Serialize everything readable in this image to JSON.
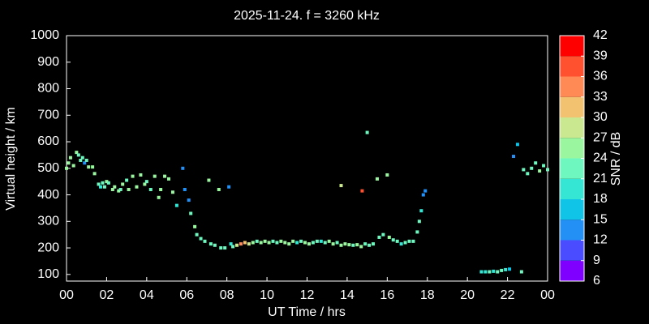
{
  "chart_data": {
    "type": "scatter",
    "title": "2025-11-24. f = 3260 kHz",
    "xlabel": "UT Time / hrs",
    "ylabel": "Virtual height / km",
    "colorbar_label": "SNR / dB",
    "x": [
      0.0,
      0.1,
      0.2,
      0.35,
      0.5,
      0.6,
      0.7,
      0.8,
      0.9,
      1.0,
      1.1,
      1.3,
      1.4,
      1.6,
      1.7,
      1.8,
      1.9,
      2.0,
      2.1,
      2.3,
      2.4,
      2.6,
      2.7,
      2.8,
      3.0,
      3.1,
      3.3,
      3.5,
      3.7,
      3.9,
      4.0,
      4.2,
      4.4,
      4.6,
      4.7,
      4.9,
      5.1,
      5.3,
      5.5,
      5.8,
      5.9,
      6.1,
      6.2,
      6.4,
      6.5,
      6.7,
      6.9,
      7.1,
      7.2,
      7.4,
      7.6,
      7.7,
      7.9,
      8.1,
      8.2,
      8.3,
      8.5,
      8.7,
      8.9,
      9.1,
      9.3,
      9.5,
      9.7,
      9.9,
      10.1,
      10.3,
      10.5,
      10.7,
      10.9,
      11.1,
      11.3,
      11.5,
      11.7,
      11.9,
      12.1,
      12.3,
      12.5,
      12.7,
      12.9,
      13.1,
      13.3,
      13.5,
      13.7,
      13.7,
      13.9,
      14.1,
      14.3,
      14.5,
      14.7,
      14.75,
      14.9,
      15.0,
      15.1,
      15.3,
      15.5,
      15.6,
      15.8,
      16.0,
      16.1,
      16.3,
      16.5,
      16.7,
      16.9,
      17.1,
      17.3,
      17.5,
      17.6,
      17.7,
      17.8,
      17.9,
      20.7,
      20.9,
      21.1,
      21.3,
      21.5,
      21.7,
      21.9,
      22.1,
      22.3,
      22.5,
      22.7,
      22.8,
      23.0,
      23.2,
      23.4,
      23.6,
      23.8,
      24.0
    ],
    "y": [
      500,
      520,
      540,
      510,
      560,
      550,
      530,
      540,
      520,
      530,
      505,
      505,
      480,
      440,
      430,
      445,
      430,
      450,
      445,
      420,
      430,
      415,
      420,
      440,
      455,
      420,
      470,
      430,
      475,
      440,
      450,
      420,
      470,
      390,
      420,
      470,
      460,
      410,
      360,
      500,
      420,
      380,
      330,
      280,
      250,
      235,
      225,
      455,
      215,
      210,
      420,
      200,
      200,
      430,
      215,
      205,
      210,
      215,
      220,
      215,
      220,
      225,
      220,
      225,
      220,
      225,
      220,
      225,
      220,
      215,
      225,
      220,
      225,
      220,
      215,
      220,
      225,
      225,
      220,
      225,
      215,
      220,
      210,
      435,
      215,
      212,
      210,
      212,
      205,
      415,
      215,
      635,
      210,
      215,
      460,
      240,
      250,
      475,
      240,
      230,
      225,
      215,
      220,
      225,
      225,
      260,
      300,
      340,
      400,
      415,
      110,
      110,
      110,
      112,
      110,
      115,
      118,
      120,
      545,
      590,
      110,
      495,
      480,
      500,
      520,
      490,
      510,
      495
    ],
    "snr": [
      24,
      24,
      24,
      24,
      24,
      22,
      22,
      22,
      12,
      22,
      24,
      24,
      24,
      22,
      18,
      22,
      22,
      24,
      22,
      24,
      24,
      24,
      22,
      24,
      22,
      24,
      24,
      24,
      24,
      24,
      22,
      22,
      24,
      24,
      24,
      24,
      24,
      24,
      18,
      12,
      12,
      12,
      21,
      24,
      22,
      22,
      21,
      24,
      22,
      21,
      24,
      22,
      22,
      12,
      18,
      22,
      27,
      33,
      30,
      27,
      24,
      22,
      24,
      24,
      24,
      21,
      22,
      24,
      24,
      24,
      24,
      18,
      22,
      24,
      24,
      22,
      21,
      18,
      22,
      24,
      24,
      22,
      24,
      27,
      24,
      24,
      22,
      24,
      24,
      36,
      21,
      21,
      22,
      21,
      24,
      22,
      22,
      24,
      24,
      22,
      21,
      18,
      22,
      22,
      21,
      21,
      22,
      18,
      12,
      12,
      18,
      18,
      21,
      18,
      21,
      21,
      18,
      15,
      12,
      15,
      21,
      21,
      21,
      21,
      21,
      24,
      21,
      21
    ],
    "xlim": [
      0,
      24
    ],
    "ylim": [
      75,
      1000
    ],
    "xticks": [
      {
        "value": 0,
        "label": "00"
      },
      {
        "value": 2,
        "label": "02"
      },
      {
        "value": 4,
        "label": "04"
      },
      {
        "value": 6,
        "label": "06"
      },
      {
        "value": 8,
        "label": "08"
      },
      10,
      12,
      14,
      16,
      18,
      20,
      22,
      {
        "value": 24,
        "label": "00"
      }
    ],
    "yticks": [
      100,
      200,
      300,
      400,
      500,
      600,
      700,
      800,
      900,
      1000
    ],
    "colorbar": {
      "lim": [
        6,
        42
      ],
      "ticks": [
        6,
        9,
        12,
        15,
        18,
        21,
        24,
        27,
        30,
        33,
        36,
        39,
        42
      ],
      "colors": [
        "#7f00ff",
        "#4a4cff",
        "#2390f5",
        "#10c4e8",
        "#35e6d4",
        "#6ef8c0",
        "#9af7a0",
        "#c9e88f",
        "#f2c270",
        "#ff8a55",
        "#ff5030",
        "#ff0000"
      ]
    }
  }
}
